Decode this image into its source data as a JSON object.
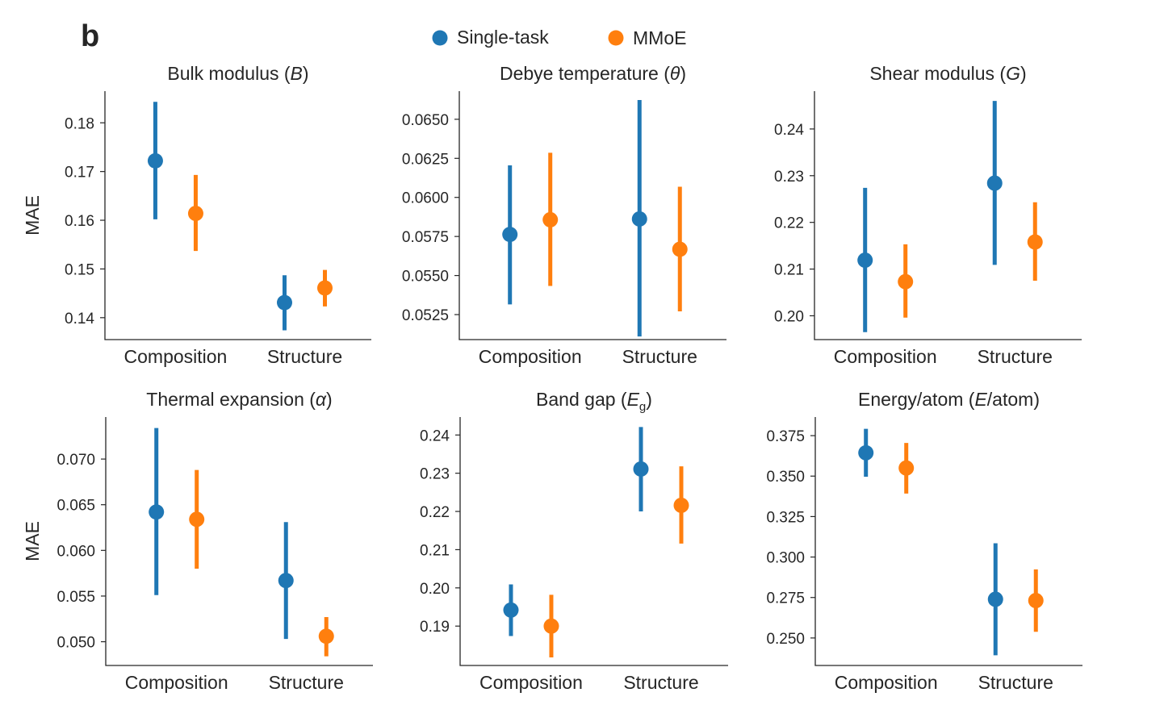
{
  "panel_label": "b",
  "legend": [
    {
      "label": "Single-task",
      "color": "#1f77b4"
    },
    {
      "label": "MMoE",
      "color": "#ff7f0e"
    }
  ],
  "chart_data": [
    {
      "type": "pointrange",
      "title": "Bulk modulus (B)",
      "title_parts": [
        {
          "t": "Bulk modulus ("
        },
        {
          "t": "B",
          "style": "italic"
        },
        {
          "t": ")"
        }
      ],
      "ylabel": "MAE",
      "categories": [
        "Composition",
        "Structure"
      ],
      "ylim": [
        0.1355,
        0.1865
      ],
      "yticks": [
        0.14,
        0.15,
        0.16,
        0.17,
        0.18
      ],
      "yticklabels": [
        "0.14",
        "0.15",
        "0.16",
        "0.17",
        "0.18"
      ],
      "series": [
        {
          "name": "Single-task",
          "values": [
            0.1722,
            0.1431
          ],
          "lower": [
            0.1602,
            0.1374
          ],
          "upper": [
            0.1843,
            0.1487
          ]
        },
        {
          "name": "MMoE",
          "values": [
            0.1614,
            0.1461
          ],
          "lower": [
            0.1537,
            0.1423
          ],
          "upper": [
            0.1693,
            0.1498
          ]
        }
      ]
    },
    {
      "type": "pointrange",
      "title": "Debye temperature (θ)",
      "title_parts": [
        {
          "t": "Debye temperature ("
        },
        {
          "t": "θ",
          "style": "italic"
        },
        {
          "t": ")"
        }
      ],
      "ylabel": "",
      "categories": [
        "Composition",
        "Structure"
      ],
      "ylim": [
        0.0509,
        0.0668
      ],
      "yticks": [
        0.0525,
        0.055,
        0.0575,
        0.06,
        0.0625,
        0.065
      ],
      "yticklabels": [
        "0.0525",
        "0.0550",
        "0.0575",
        "0.0600",
        "0.0625",
        "0.0650"
      ],
      "series": [
        {
          "name": "Single-task",
          "values": [
            0.05763,
            0.05862
          ],
          "lower": [
            0.05315,
            0.0511
          ],
          "upper": [
            0.06205,
            0.06623
          ]
        },
        {
          "name": "MMoE",
          "values": [
            0.05857,
            0.05668
          ],
          "lower": [
            0.05433,
            0.05271
          ],
          "upper": [
            0.06286,
            0.06068
          ]
        }
      ]
    },
    {
      "type": "pointrange",
      "title": "Shear modulus (G)",
      "title_parts": [
        {
          "t": "Shear modulus ("
        },
        {
          "t": "G",
          "style": "italic"
        },
        {
          "t": ")"
        }
      ],
      "ylabel": "",
      "categories": [
        "Composition",
        "Structure"
      ],
      "ylim": [
        0.1949,
        0.2481
      ],
      "yticks": [
        0.2,
        0.21,
        0.22,
        0.23,
        0.24
      ],
      "yticklabels": [
        "0.20",
        "0.21",
        "0.22",
        "0.23",
        "0.24"
      ],
      "series": [
        {
          "name": "Single-task",
          "values": [
            0.2119,
            0.2284
          ],
          "lower": [
            0.1965,
            0.2109
          ],
          "upper": [
            0.2274,
            0.246
          ]
        },
        {
          "name": "MMoE",
          "values": [
            0.2073,
            0.2158
          ],
          "lower": [
            0.1996,
            0.2075
          ],
          "upper": [
            0.2153,
            0.2243
          ]
        }
      ]
    },
    {
      "type": "pointrange",
      "title": "Thermal expansion (α)",
      "title_parts": [
        {
          "t": "Thermal expansion ("
        },
        {
          "t": "α",
          "style": "italic"
        },
        {
          "t": ")"
        }
      ],
      "ylabel": "MAE",
      "categories": [
        "Composition",
        "Structure"
      ],
      "ylim": [
        0.0474,
        0.0746
      ],
      "yticks": [
        0.05,
        0.055,
        0.06,
        0.065,
        0.07
      ],
      "yticklabels": [
        "0.050",
        "0.055",
        "0.060",
        "0.065",
        "0.070"
      ],
      "series": [
        {
          "name": "Single-task",
          "values": [
            0.0642,
            0.0567
          ],
          "lower": [
            0.0551,
            0.0503
          ],
          "upper": [
            0.0734,
            0.0631
          ]
        },
        {
          "name": "MMoE",
          "values": [
            0.0634,
            0.0506
          ],
          "lower": [
            0.058,
            0.0484
          ],
          "upper": [
            0.0688,
            0.0527
          ]
        }
      ]
    },
    {
      "type": "pointrange",
      "title": "Band gap (Eg)",
      "title_parts": [
        {
          "t": "Band gap ("
        },
        {
          "t": "E",
          "style": "italic"
        },
        {
          "t": "g",
          "style": "sub"
        },
        {
          "t": ")"
        }
      ],
      "ylabel": "",
      "categories": [
        "Composition",
        "Structure"
      ],
      "ylim": [
        0.1797,
        0.2447
      ],
      "yticks": [
        0.19,
        0.2,
        0.21,
        0.22,
        0.23,
        0.24
      ],
      "yticklabels": [
        "0.19",
        "0.20",
        "0.21",
        "0.22",
        "0.23",
        "0.24"
      ],
      "series": [
        {
          "name": "Single-task",
          "values": [
            0.1942,
            0.2311
          ],
          "lower": [
            0.1874,
            0.22
          ],
          "upper": [
            0.2009,
            0.2421
          ]
        },
        {
          "name": "MMoE",
          "values": [
            0.19,
            0.2216
          ],
          "lower": [
            0.1818,
            0.2116
          ],
          "upper": [
            0.1982,
            0.2318
          ]
        }
      ]
    },
    {
      "type": "pointrange",
      "title": "Energy/atom (E/atom)",
      "title_parts": [
        {
          "t": "Energy/atom ("
        },
        {
          "t": "E",
          "style": "italic"
        },
        {
          "t": "/atom)"
        }
      ],
      "ylabel": "",
      "categories": [
        "Composition",
        "Structure"
      ],
      "ylim": [
        0.233,
        0.3865
      ],
      "yticks": [
        0.25,
        0.275,
        0.3,
        0.325,
        0.35,
        0.375
      ],
      "yticklabels": [
        "0.250",
        "0.275",
        "0.300",
        "0.325",
        "0.350",
        "0.375"
      ],
      "series": [
        {
          "name": "Single-task",
          "values": [
            0.3644,
            0.2739
          ],
          "lower": [
            0.3496,
            0.2393
          ],
          "upper": [
            0.3792,
            0.3085
          ]
        },
        {
          "name": "MMoE",
          "values": [
            0.355,
            0.2731
          ],
          "lower": [
            0.3392,
            0.2538
          ],
          "upper": [
            0.3705,
            0.2924
          ]
        }
      ]
    }
  ]
}
